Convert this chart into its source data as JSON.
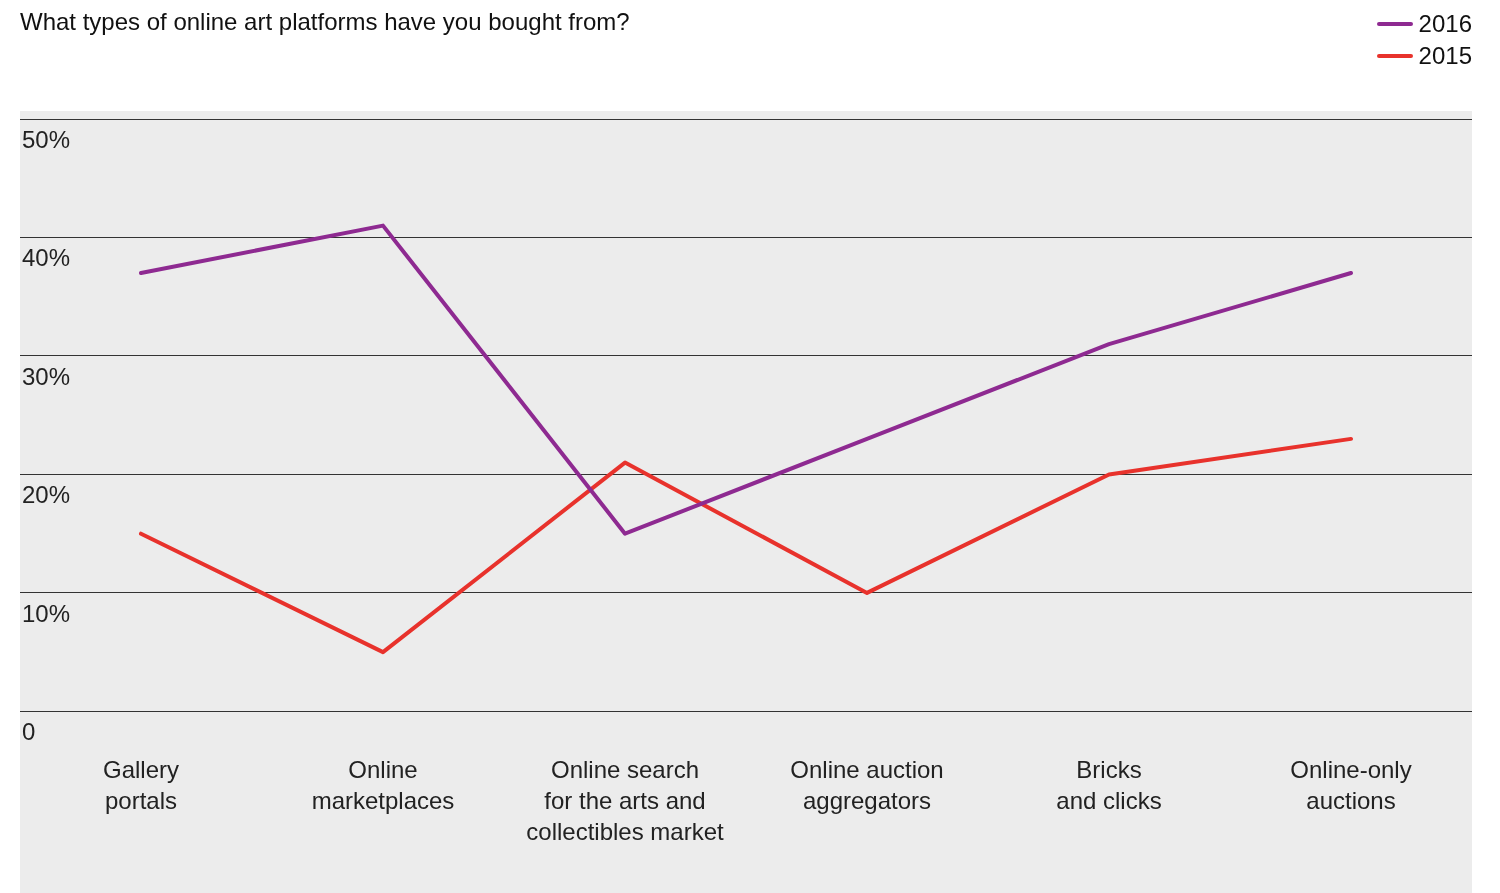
{
  "chart_data": {
    "type": "line",
    "title": "What types of online art platforms have you bought from?",
    "categories": [
      "Gallery\nportals",
      "Online\nmarketplaces",
      "Online search\nfor the arts and\ncollectibles market",
      "Online auction\naggregators",
      "Bricks\nand clicks",
      "Online-only\nauctions"
    ],
    "series": [
      {
        "name": "2016",
        "color": "#8e2a91",
        "values": [
          37,
          41,
          15,
          23,
          31,
          37
        ]
      },
      {
        "name": "2015",
        "color": "#e8322c",
        "values": [
          15,
          5,
          21,
          10,
          20,
          23
        ]
      }
    ],
    "ylim": [
      0,
      50
    ],
    "yticks": [
      {
        "value": 0,
        "label": "0"
      },
      {
        "value": 10,
        "label": "10%"
      },
      {
        "value": 20,
        "label": "20%"
      },
      {
        "value": 30,
        "label": "30%"
      },
      {
        "value": 40,
        "label": "40%"
      },
      {
        "value": 50,
        "label": "50%"
      }
    ],
    "grid": "y",
    "legend": "top right",
    "marker": "none",
    "line_style": "solid"
  }
}
